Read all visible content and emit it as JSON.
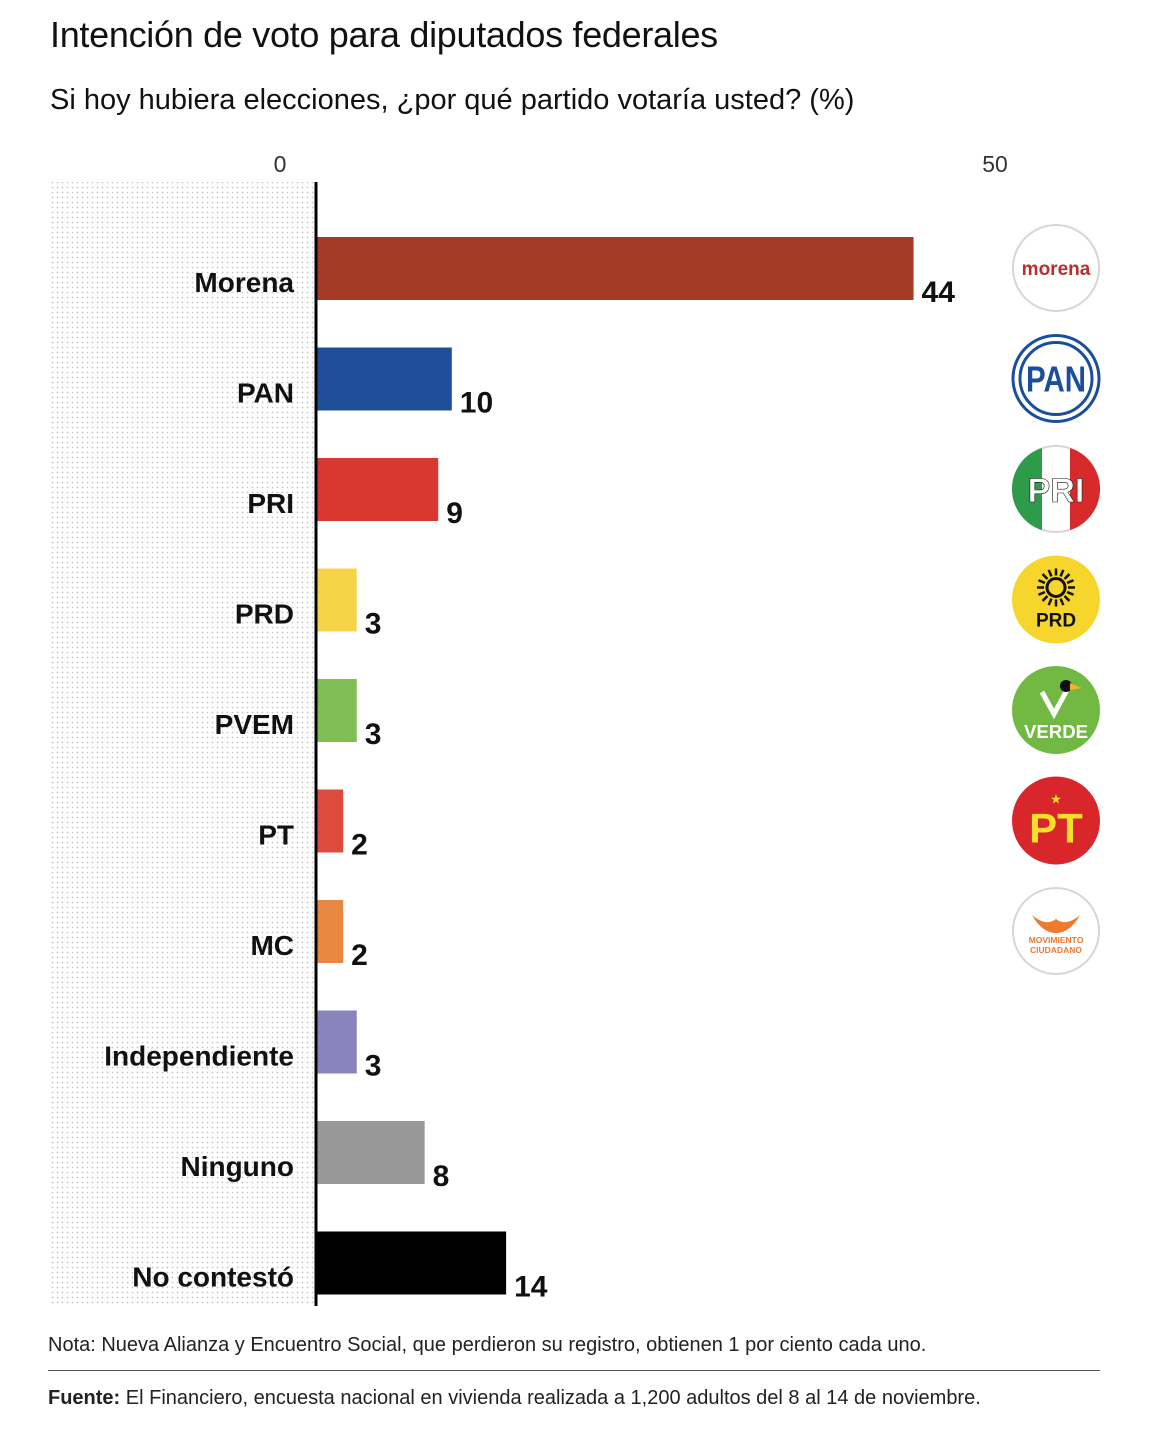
{
  "header": {
    "title": "Intención de voto para diputados federales",
    "subtitle": "Si hoy hubiera elecciones, ¿por qué partido votaría usted? (%)"
  },
  "chart_data": {
    "type": "bar",
    "orientation": "horizontal",
    "title": "Intención de voto para diputados federales",
    "subtitle": "Si hoy hubiera elecciones, ¿por qué partido votaría usted? (%)",
    "xlim": [
      0,
      50
    ],
    "ticks": [
      "0",
      "50"
    ],
    "categories": [
      "Morena",
      "PAN",
      "PRI",
      "PRD",
      "PVEM",
      "PT",
      "MC",
      "Independiente",
      "Ninguno",
      "No contestó"
    ],
    "values": [
      44,
      10,
      9,
      3,
      3,
      2,
      2,
      3,
      8,
      14
    ],
    "colors": [
      "#a23a26",
      "#1f4f98",
      "#d93831",
      "#f5d547",
      "#80bd52",
      "#dc4b3b",
      "#e8873f",
      "#8a83bd",
      "#989898",
      "#000000"
    ],
    "logos": [
      {
        "party": "Morena",
        "text": "morena",
        "color": "#b5312c"
      },
      {
        "party": "PAN",
        "text": "PAN",
        "color": "#1a4d9c"
      },
      {
        "party": "PRI",
        "text": "PRI",
        "color": "#d72b2b"
      },
      {
        "party": "PRD",
        "text": "PRD",
        "color": "#f6d52c"
      },
      {
        "party": "PVEM",
        "text": "VERDE",
        "color": "#72b944"
      },
      {
        "party": "PT",
        "text": "PT",
        "color": "#d9262a"
      },
      {
        "party": "MC",
        "text": "MOVIMIENTO CIUDADANO",
        "color": "#ee7a2c"
      }
    ]
  },
  "footer": {
    "note": "Nota: Nueva Alianza y Encuentro Social, que perdieron su registro, obtienen 1 por ciento cada uno.",
    "source_label": "Fuente:",
    "source_text": " El Financiero, encuesta nacional en vivienda realizada a 1,200 adultos del 8 al 14 de noviembre."
  }
}
